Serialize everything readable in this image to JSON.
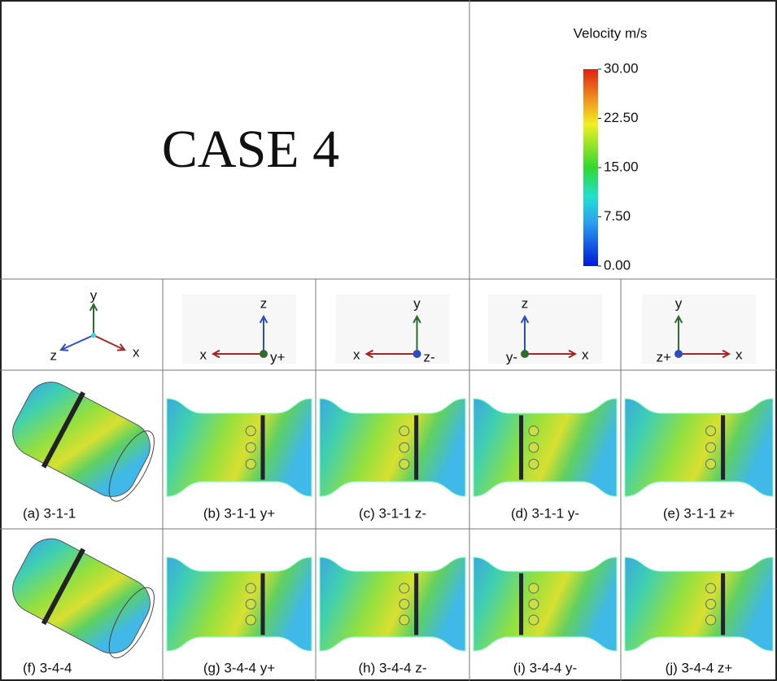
{
  "title": "CASE 4",
  "colorbar": {
    "title": "Velocity m/s",
    "lim": [
      0,
      30
    ],
    "ticks": [
      {
        "value": 30,
        "label": "30.00"
      },
      {
        "value": 22.5,
        "label": "22.50"
      },
      {
        "value": 15,
        "label": "15.00"
      },
      {
        "value": 7.5,
        "label": "7.50"
      },
      {
        "value": 0,
        "label": "0.00"
      }
    ]
  },
  "axes": [
    {
      "up": "y",
      "side": "x",
      "other": "z"
    },
    {
      "up": "z",
      "side": "x",
      "other": "y+"
    },
    {
      "up": "y",
      "side": "x",
      "other": "z-"
    },
    {
      "up": "z",
      "side": "x",
      "other": "y-"
    },
    {
      "up": "y",
      "side": "x",
      "other": "z+"
    }
  ],
  "panels": [
    [
      "(a) 3-1-1",
      "(b) 3-1-1 y+",
      "(c) 3-1-1 z-",
      "(d) 3-1-1 y-",
      "(e) 3-1-1 z+"
    ],
    [
      "(f) 3-4-4",
      "(g) 3-4-4 y+",
      "(h) 3-4-4 z-",
      "(i) 3-4-4 y-",
      "(j) 3-4-4 z+"
    ]
  ]
}
